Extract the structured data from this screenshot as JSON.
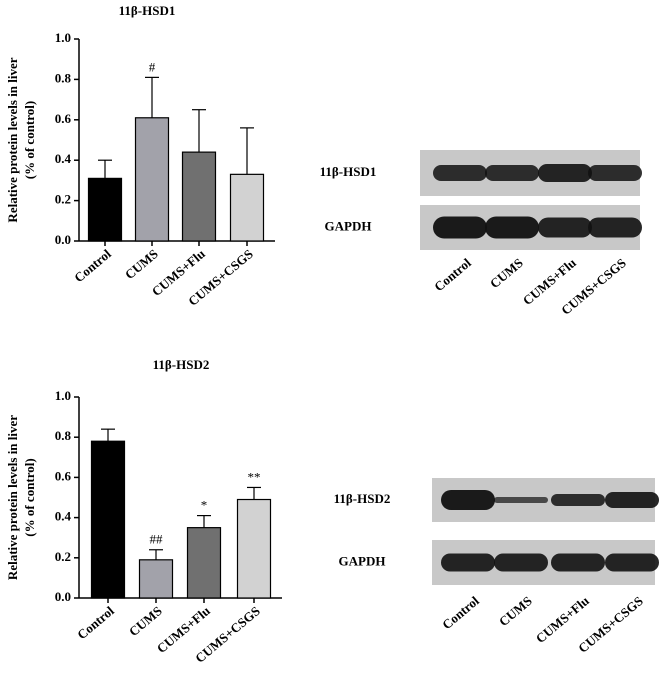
{
  "chart_data": [
    {
      "type": "bar",
      "title": "11β-HSD1",
      "ylabel": [
        "Relative protein levels in liver",
        "(% of control)"
      ],
      "categories": [
        "Control",
        "CUMS",
        "CUMS+Flu",
        "CUMS+CSGS"
      ],
      "values": [
        0.31,
        0.61,
        0.44,
        0.33
      ],
      "errors": [
        0.09,
        0.2,
        0.21,
        0.23
      ],
      "annotations": [
        null,
        "#",
        null,
        null
      ],
      "colors": [
        "#000000",
        "#a2a2aa",
        "#707070",
        "#d2d2d2"
      ],
      "ylim": [
        0,
        1.0
      ],
      "yticks": [
        {
          "value": 0,
          "label": "0.0"
        },
        0.2,
        0.4,
        0.6,
        0.8,
        {
          "value": 1.0,
          "label": "1.0"
        }
      ]
    },
    {
      "type": "bar",
      "title": "11β-HSD2",
      "ylabel": [
        "Relative protein levels in liver",
        "(% of control)"
      ],
      "categories": [
        "Control",
        "CUMS",
        "CUMS+Flu",
        "CUMS+CSGS"
      ],
      "values": [
        0.78,
        0.19,
        0.35,
        0.49
      ],
      "errors": [
        0.06,
        0.05,
        0.06,
        0.06
      ],
      "annotations": [
        null,
        "##",
        "*",
        "**"
      ],
      "colors": [
        "#000000",
        "#a2a2aa",
        "#707070",
        "#d2d2d2"
      ],
      "ylim": [
        0,
        1.0
      ],
      "yticks": [
        {
          "value": 0,
          "label": "0.0"
        },
        0.2,
        0.4,
        0.6,
        0.8,
        {
          "value": 1.0,
          "label": "1.0"
        }
      ]
    }
  ],
  "blots": [
    {
      "rows": [
        "11β-HSD1",
        "GAPDH"
      ],
      "lanes": [
        "Control",
        "CUMS",
        "CUMS+Flu",
        "CUMS+CSGS"
      ]
    },
    {
      "rows": [
        "11β-HSD2",
        "GAPDH"
      ],
      "lanes": [
        "Control",
        "CUMS",
        "CUMS+Flu",
        "CUMS+CSGS"
      ]
    }
  ]
}
